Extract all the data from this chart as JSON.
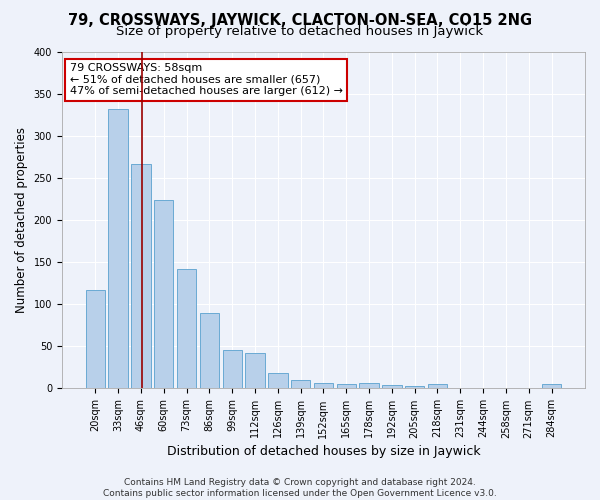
{
  "title": "79, CROSSWAYS, JAYWICK, CLACTON-ON-SEA, CO15 2NG",
  "subtitle": "Size of property relative to detached houses in Jaywick",
  "xlabel": "Distribution of detached houses by size in Jaywick",
  "ylabel": "Number of detached properties",
  "categories": [
    "20sqm",
    "33sqm",
    "46sqm",
    "60sqm",
    "73sqm",
    "86sqm",
    "99sqm",
    "112sqm",
    "126sqm",
    "139sqm",
    "152sqm",
    "165sqm",
    "178sqm",
    "192sqm",
    "205sqm",
    "218sqm",
    "231sqm",
    "244sqm",
    "258sqm",
    "271sqm",
    "284sqm"
  ],
  "values": [
    117,
    332,
    267,
    224,
    142,
    90,
    46,
    42,
    18,
    10,
    7,
    5,
    7,
    4,
    3,
    5,
    0,
    0,
    0,
    0,
    5
  ],
  "bar_color": "#b8d0ea",
  "bar_edge_color": "#6aaad4",
  "background_color": "#eef2fa",
  "grid_color": "#ffffff",
  "annotation_line1": "79 CROSSWAYS: 58sqm",
  "annotation_line2": "← 51% of detached houses are smaller (657)",
  "annotation_line3": "47% of semi-detached houses are larger (612) →",
  "vline_x": 2.05,
  "vline_color": "#990000",
  "footnote": "Contains HM Land Registry data © Crown copyright and database right 2024.\nContains public sector information licensed under the Open Government Licence v3.0.",
  "ylim": [
    0,
    400
  ],
  "title_fontsize": 10.5,
  "subtitle_fontsize": 9.5,
  "ylabel_fontsize": 8.5,
  "xlabel_fontsize": 9,
  "tick_fontsize": 7,
  "annot_fontsize": 8,
  "footnote_fontsize": 6.5
}
